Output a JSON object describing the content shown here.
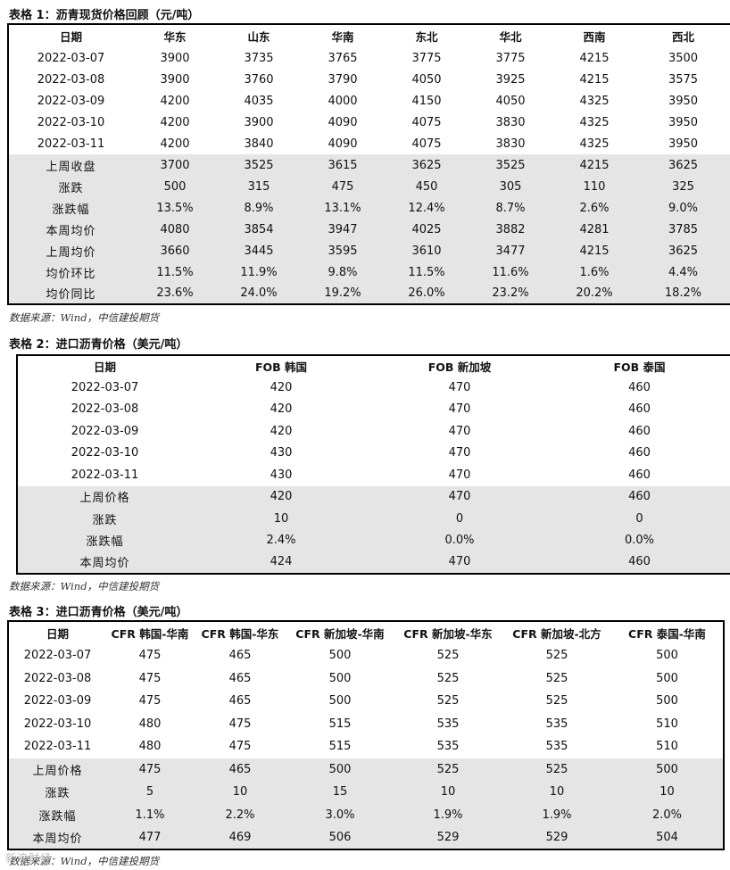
{
  "table1": {
    "caption": "表格 1：沥青现货价格回顾（元/吨）",
    "headers": [
      "日期",
      "华东",
      "山东",
      "华南",
      "东北",
      "华北",
      "西南",
      "西北"
    ],
    "rows": [
      [
        "2022-03-07",
        "3900",
        "3735",
        "3765",
        "3775",
        "3775",
        "4215",
        "3500"
      ],
      [
        "2022-03-08",
        "3900",
        "3760",
        "3790",
        "4050",
        "3925",
        "4215",
        "3575"
      ],
      [
        "2022-03-09",
        "4200",
        "4035",
        "4000",
        "4150",
        "4050",
        "4325",
        "3950"
      ],
      [
        "2022-03-10",
        "4200",
        "3900",
        "4090",
        "4075",
        "3830",
        "4325",
        "3950"
      ],
      [
        "2022-03-11",
        "4200",
        "3840",
        "4090",
        "4075",
        "3830",
        "4325",
        "3950"
      ]
    ],
    "summary": [
      [
        "上周收盘",
        "3700",
        "3525",
        "3615",
        "3625",
        "3525",
        "4215",
        "3625"
      ],
      [
        "涨跌",
        "500",
        "315",
        "475",
        "450",
        "305",
        "110",
        "325"
      ],
      [
        "涨跌幅",
        "13.5%",
        "8.9%",
        "13.1%",
        "12.4%",
        "8.7%",
        "2.6%",
        "9.0%"
      ],
      [
        "本周均价",
        "4080",
        "3854",
        "3947",
        "4025",
        "3882",
        "4281",
        "3785"
      ],
      [
        "上周均价",
        "3660",
        "3445",
        "3595",
        "3610",
        "3477",
        "4215",
        "3625"
      ],
      [
        "均价环比",
        "11.5%",
        "11.9%",
        "9.8%",
        "11.5%",
        "11.6%",
        "1.6%",
        "4.4%"
      ],
      [
        "均价同比",
        "23.6%",
        "24.0%",
        "19.2%",
        "26.0%",
        "23.2%",
        "20.2%",
        "18.2%"
      ]
    ],
    "source": "数据来源：Wind，中信建投期货"
  },
  "table2": {
    "caption": "表格 2：进口沥青价格（美元/吨）",
    "headers": [
      "日期",
      "FOB 韩国",
      "FOB 新加坡",
      "FOB 泰国"
    ],
    "rows": [
      [
        "2022-03-07",
        "420",
        "470",
        "460"
      ],
      [
        "2022-03-08",
        "420",
        "470",
        "460"
      ],
      [
        "2022-03-09",
        "420",
        "470",
        "460"
      ],
      [
        "2022-03-10",
        "430",
        "470",
        "460"
      ],
      [
        "2022-03-11",
        "430",
        "470",
        "460"
      ]
    ],
    "summary": [
      [
        "上周价格",
        "420",
        "470",
        "460"
      ],
      [
        "涨跌",
        "10",
        "0",
        "0"
      ],
      [
        "涨跌幅",
        "2.4%",
        "0.0%",
        "0.0%"
      ],
      [
        "本周均价",
        "424",
        "470",
        "460"
      ]
    ],
    "source": "数据来源：Wind，中信建投期货"
  },
  "table3": {
    "caption": "表格 3：进口沥青价格（美元/吨）",
    "headers": [
      "日期",
      "CFR 韩国-华南",
      "CFR 韩国-华东",
      "CFR 新加坡-华南",
      "CFR 新加坡-华东",
      "CFR 新加坡-北方",
      "CFR 泰国-华南"
    ],
    "rows": [
      [
        "2022-03-07",
        "475",
        "465",
        "500",
        "525",
        "525",
        "500"
      ],
      [
        "2022-03-08",
        "475",
        "465",
        "500",
        "525",
        "525",
        "500"
      ],
      [
        "2022-03-09",
        "475",
        "465",
        "500",
        "525",
        "525",
        "500"
      ],
      [
        "2022-03-10",
        "480",
        "475",
        "515",
        "535",
        "535",
        "510"
      ],
      [
        "2022-03-11",
        "480",
        "475",
        "515",
        "535",
        "535",
        "510"
      ]
    ],
    "summary": [
      [
        "上周价格",
        "475",
        "465",
        "500",
        "525",
        "525",
        "500"
      ],
      [
        "涨跌",
        "5",
        "10",
        "15",
        "10",
        "10",
        "10"
      ],
      [
        "涨跌幅",
        "1.1%",
        "2.2%",
        "3.0%",
        "1.9%",
        "1.9%",
        "2.0%"
      ],
      [
        "本周均价",
        "477",
        "469",
        "506",
        "529",
        "529",
        "504"
      ]
    ],
    "source": "数据来源：Wind，中信建投期货"
  },
  "watermark": "新浪财经"
}
